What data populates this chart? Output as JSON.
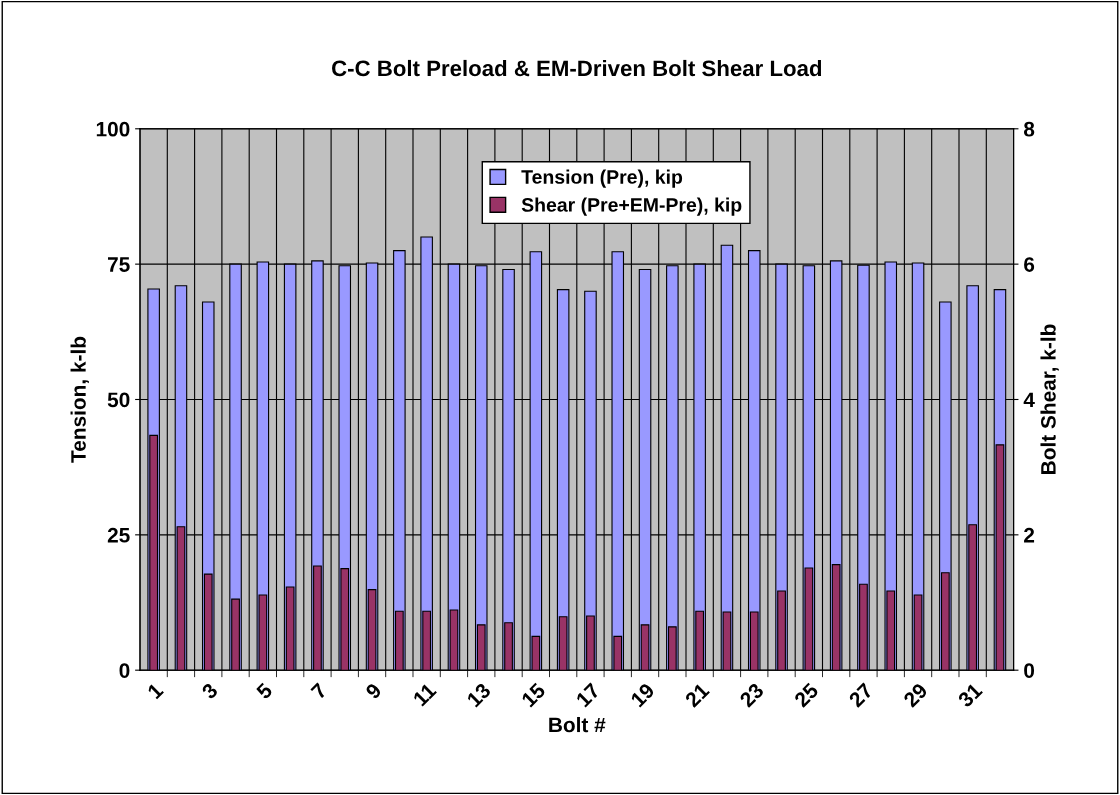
{
  "chart_data": {
    "type": "bar",
    "title": "C-C Bolt Preload & EM-Driven Bolt Shear Load",
    "xlabel": "Bolt #",
    "ylabel": "Tension, k-lb",
    "y2label": "Bolt Shear, k-lb",
    "categories": [
      "1",
      null,
      "3",
      null,
      "5",
      null,
      "7",
      null,
      "9",
      null,
      "11",
      null,
      "13",
      null,
      "15",
      null,
      "17",
      null,
      "19",
      null,
      "21",
      null,
      "23",
      null,
      "25",
      null,
      "27",
      null,
      "29",
      null,
      "31",
      null
    ],
    "series": [
      {
        "name": "Tension (Pre), kip",
        "color": "#9999ff",
        "values": [
          70.4,
          71,
          68,
          75,
          75.4,
          75,
          75.6,
          74.7,
          75.2,
          77.5,
          80,
          75,
          74.7,
          74,
          77.3,
          70.3,
          70,
          77.3,
          74,
          74.7,
          75,
          78.5,
          77.5,
          75,
          74.7,
          75.6,
          74.8,
          75.4,
          75.2,
          68,
          71,
          70.3
        ]
      },
      {
        "name": "Shear (Pre+EM-Pre), kip",
        "color": "#993366",
        "axis": "y2",
        "values": [
          3.47,
          2.12,
          1.42,
          1.05,
          1.11,
          1.23,
          1.54,
          1.5,
          1.19,
          0.87,
          0.87,
          0.89,
          0.67,
          0.7,
          0.5,
          0.79,
          0.8,
          0.5,
          0.67,
          0.64,
          0.87,
          0.86,
          0.86,
          1.17,
          1.51,
          1.56,
          1.27,
          1.17,
          1.11,
          1.44,
          2.15,
          3.33
        ]
      }
    ],
    "ylim": [
      0,
      100
    ],
    "yticks": [
      0,
      25,
      50,
      75,
      100
    ],
    "y2lim": [
      0,
      8
    ],
    "y2ticks": [
      0,
      2,
      4,
      6,
      8
    ],
    "grid": true,
    "legend": "top"
  }
}
